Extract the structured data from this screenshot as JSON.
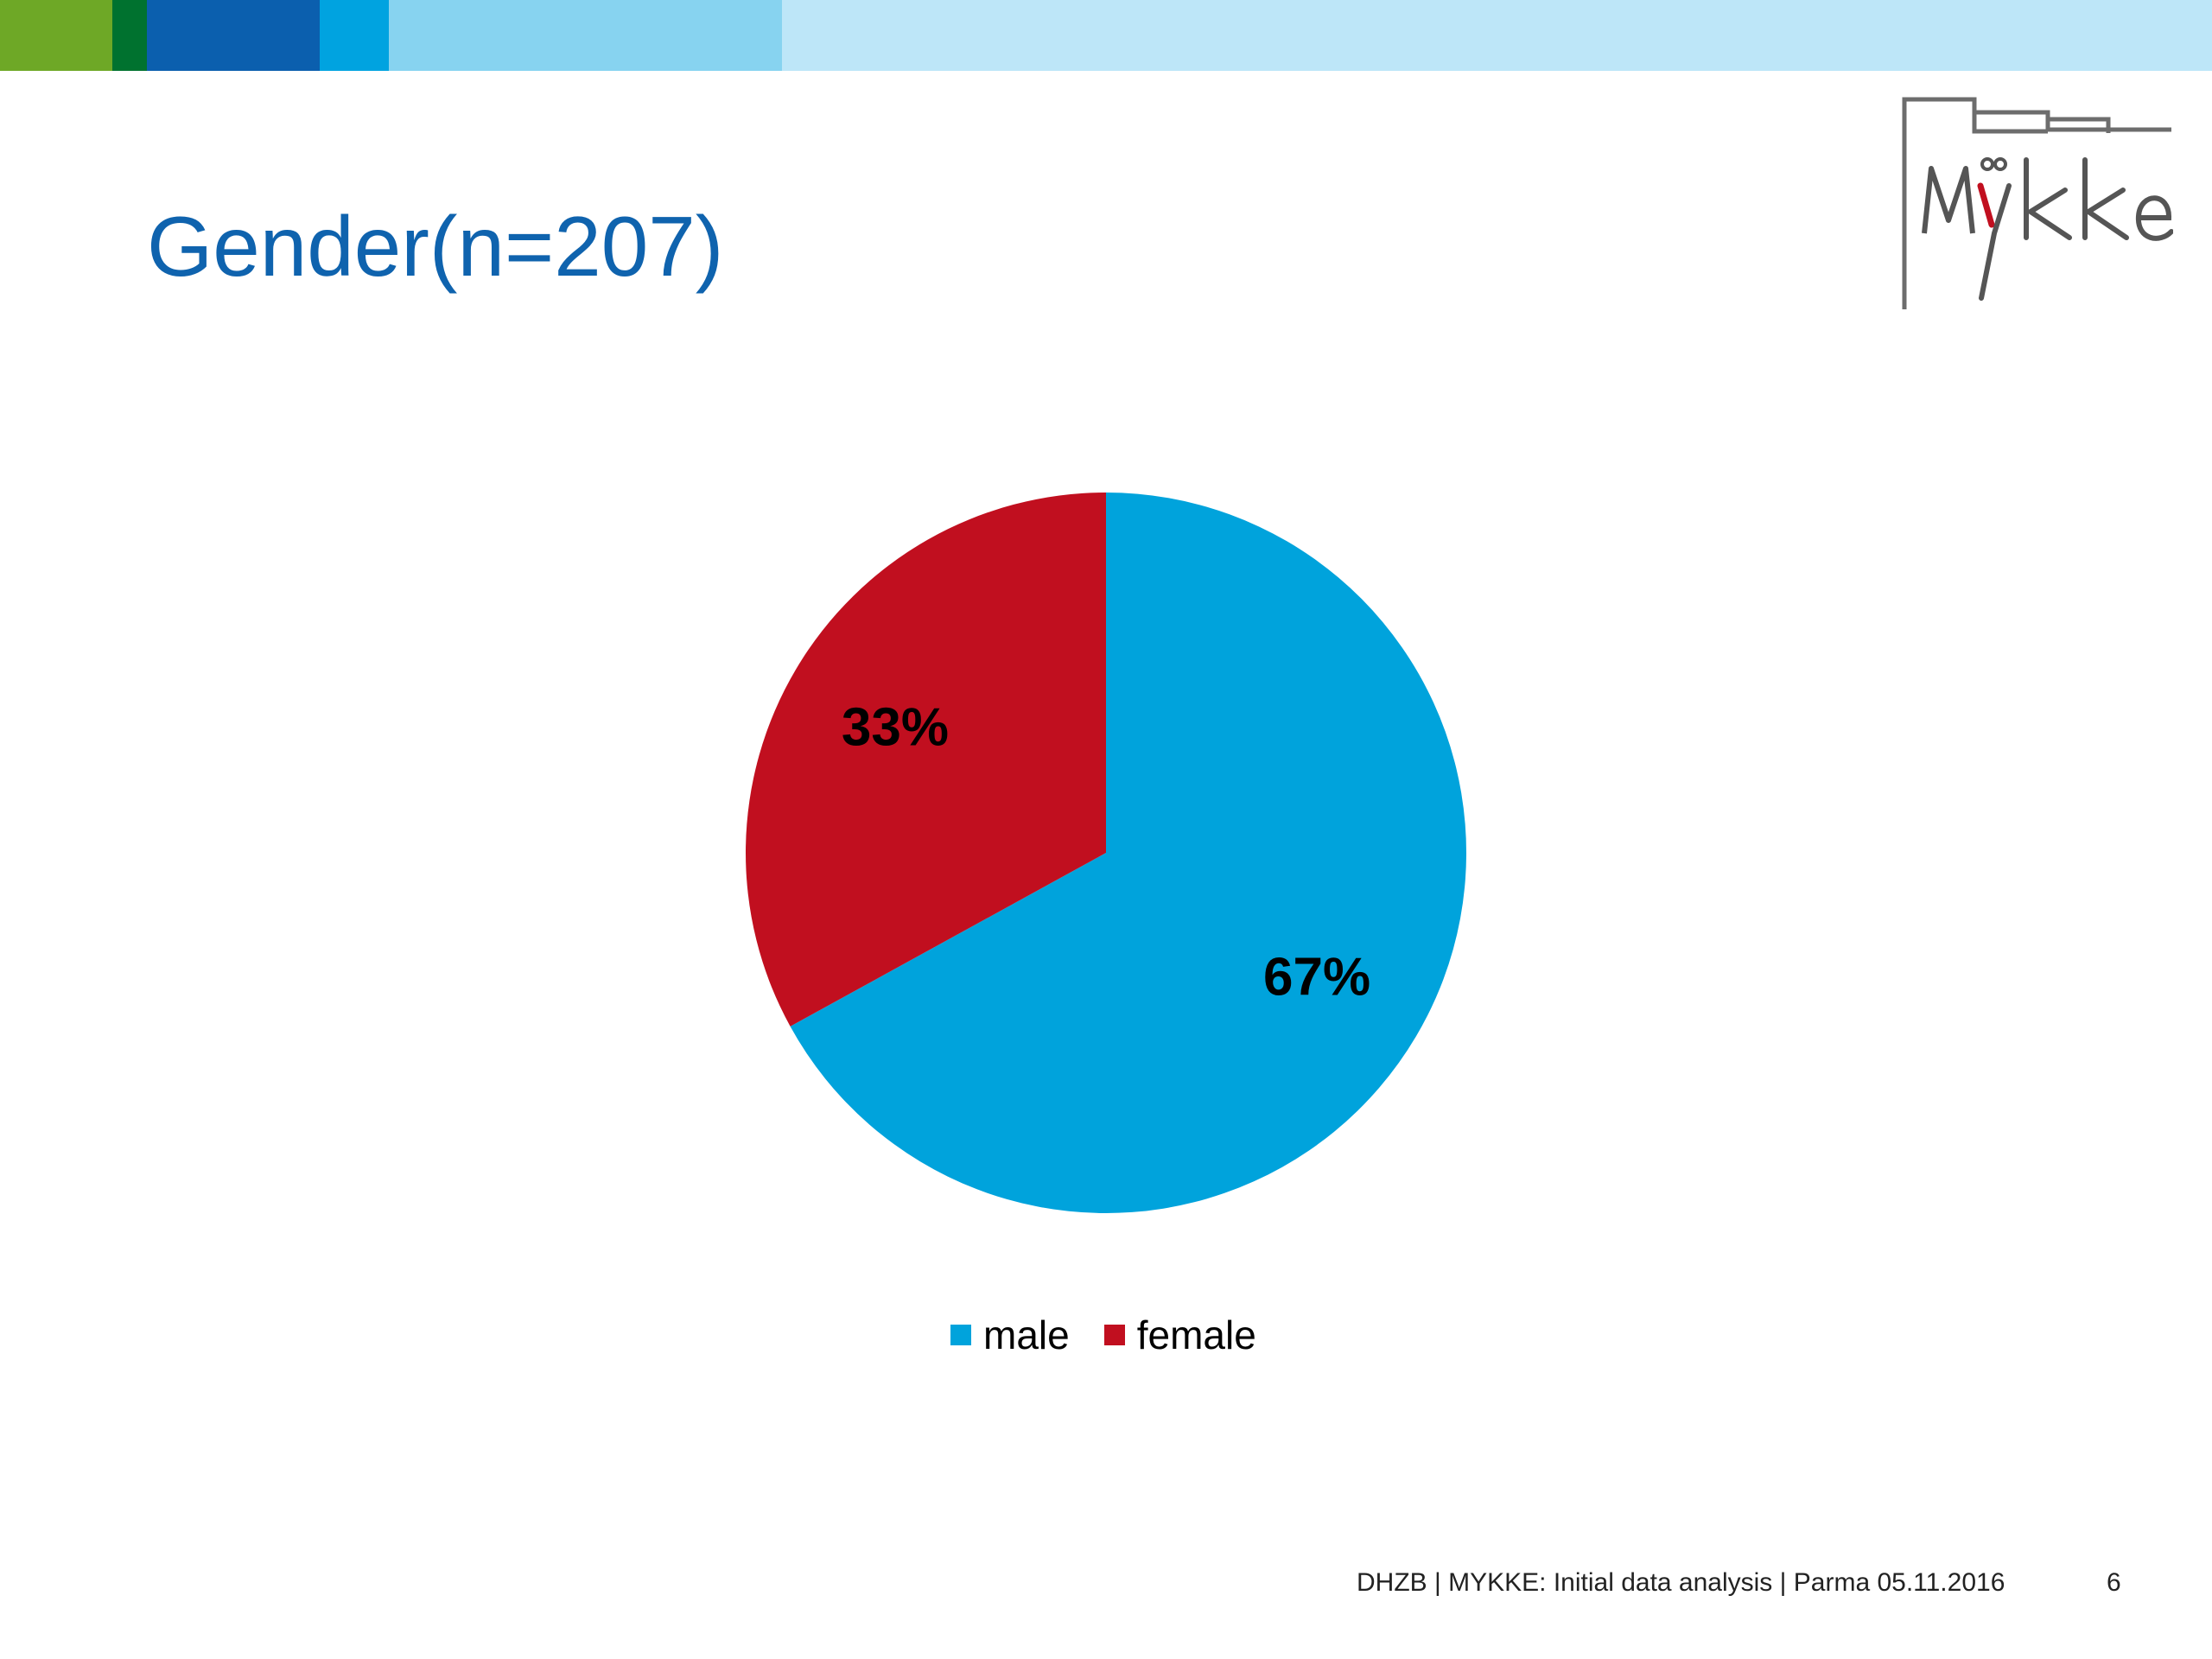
{
  "colors": {
    "bar": [
      "#6ea826",
      "#00722f",
      "#0b5fae",
      "#00a3e0",
      "#87d3f0",
      "#bde6f8"
    ],
    "title": "#0f63ae",
    "male": "#00a3dc",
    "female": "#c10f1f"
  },
  "slide": {
    "title": "Gender(n=207)",
    "logo_text": "Mykke",
    "footer": "DHZB | MYKKE: Initial data analysis | Parma 05.11.2016",
    "page_number": "6"
  },
  "chart_data": {
    "type": "pie",
    "title": "",
    "categories": [
      "male",
      "female"
    ],
    "values": [
      67,
      33
    ],
    "data_labels": [
      "67%",
      "33%"
    ],
    "legend_position": "bottom",
    "colors": [
      "#00a3dc",
      "#c10f1f"
    ]
  }
}
